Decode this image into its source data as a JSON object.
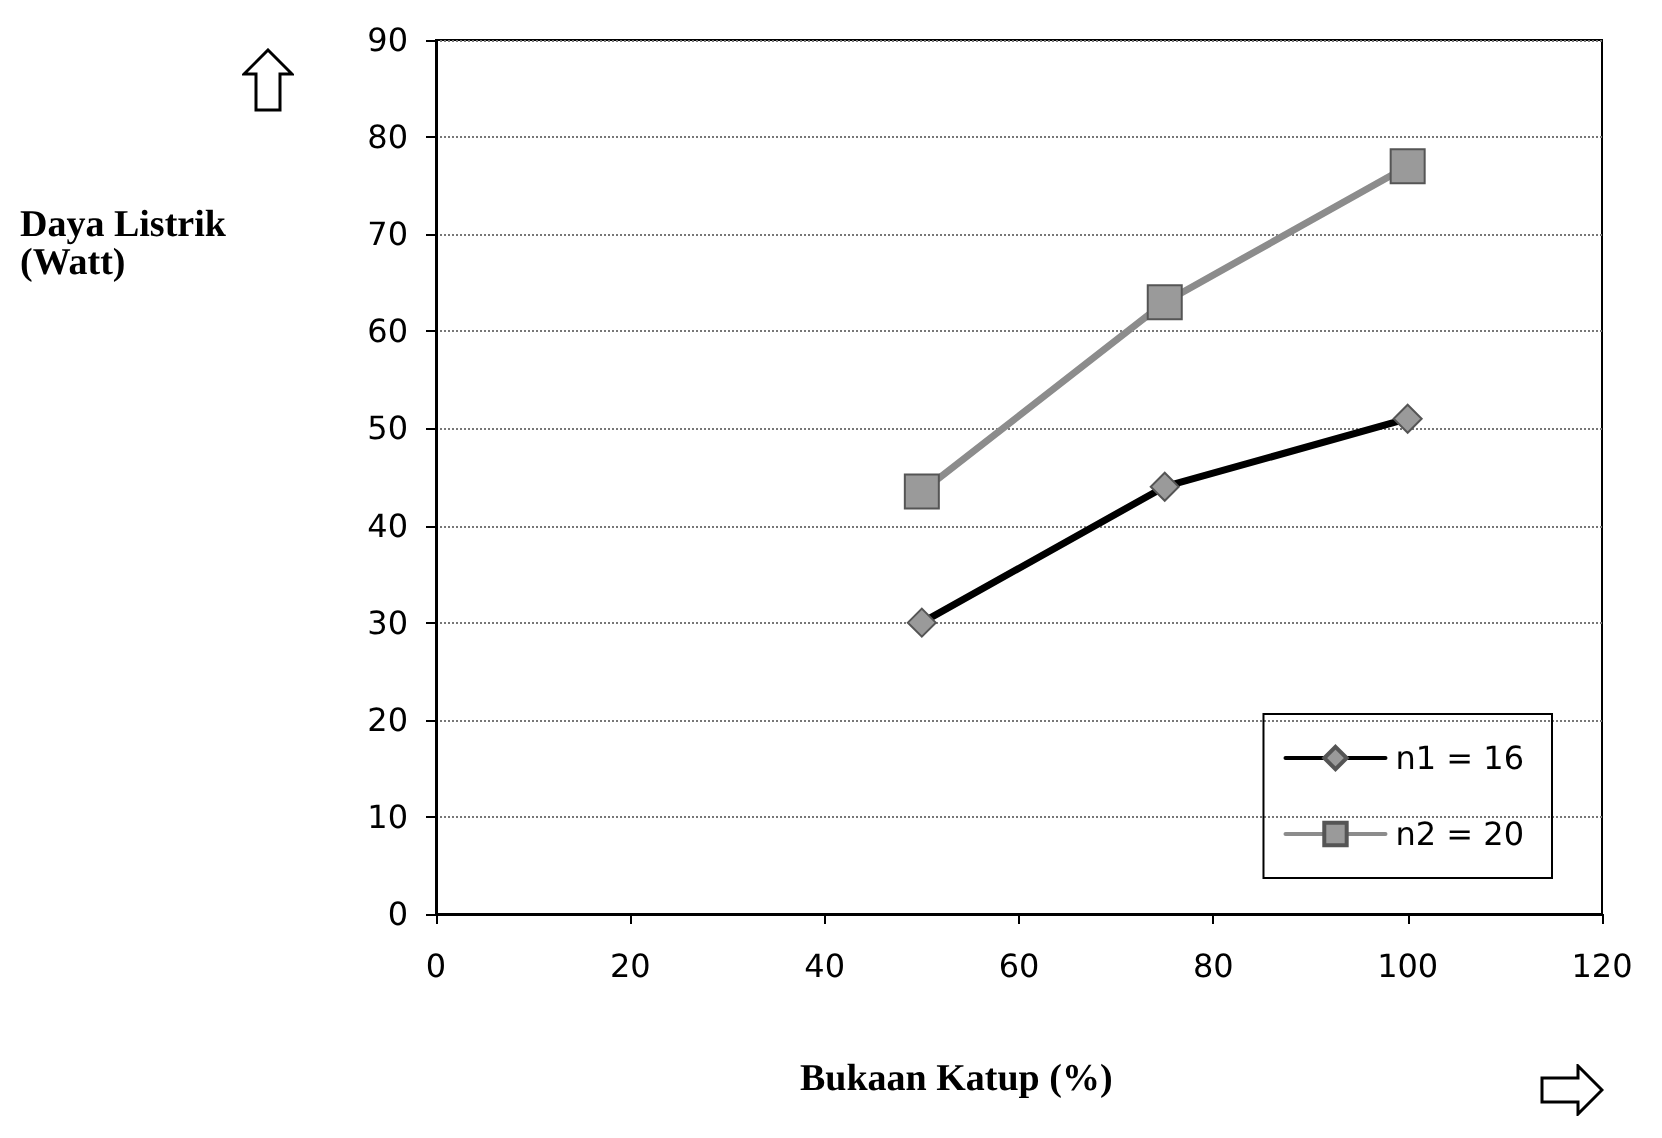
{
  "chart_data": {
    "type": "line",
    "xlabel": "Bukaan Katup (%)",
    "ylabel": "Daya Listrik\n(Watt)",
    "x": [
      50,
      75,
      100
    ],
    "series": [
      {
        "name": "n1 = 16",
        "color": "#000000",
        "marker": "diamond",
        "values": [
          30,
          44,
          51
        ]
      },
      {
        "name": "n2 = 20",
        "color": "#8c8c8c",
        "marker": "square",
        "values": [
          43.5,
          63,
          77
        ]
      }
    ],
    "xlim": [
      0,
      120
    ],
    "xticks": [
      0,
      20,
      40,
      60,
      80,
      100,
      120
    ],
    "ylim": [
      0,
      90
    ],
    "yticks": [
      0,
      10,
      20,
      30,
      40,
      50,
      60,
      70,
      80,
      90
    ],
    "grid": "y",
    "legend": "bottom right"
  }
}
